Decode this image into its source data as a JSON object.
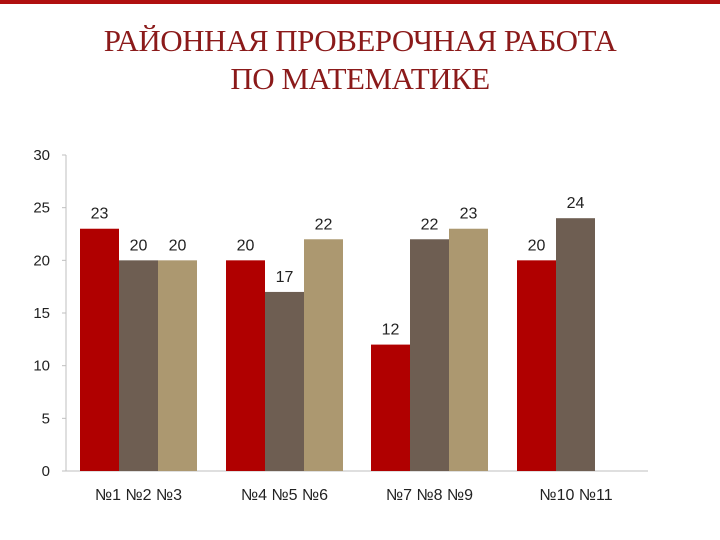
{
  "slide": {
    "title_line1": "РАЙОННАЯ ПРОВЕРОЧНАЯ РАБОТА",
    "title_line2": "ПО МАТЕМАТИКЕ",
    "title_color": "#8b1a1a",
    "top_band_color": "#b01010"
  },
  "chart_data": {
    "type": "bar",
    "title": "",
    "xlabel": "",
    "ylabel": "",
    "ylim": [
      0,
      30
    ],
    "yticks": [
      0,
      5,
      10,
      15,
      20,
      25,
      30
    ],
    "grid": false,
    "legend": "none",
    "categories": [
      "№1 №2 №3",
      "№4 №5 №6",
      "№7 №8 №9",
      "№10 №11"
    ],
    "bar_colors": [
      "#b00000",
      "#6e5e52",
      "#ac9870"
    ],
    "groups": [
      {
        "category": "№1 №2 №3",
        "values": [
          23,
          20,
          20
        ]
      },
      {
        "category": "№4 №5 №6",
        "values": [
          20,
          17,
          22
        ]
      },
      {
        "category": "№7 №8 №9",
        "values": [
          12,
          22,
          23
        ]
      },
      {
        "category": "№10 №11",
        "values": [
          20,
          24
        ]
      }
    ]
  }
}
